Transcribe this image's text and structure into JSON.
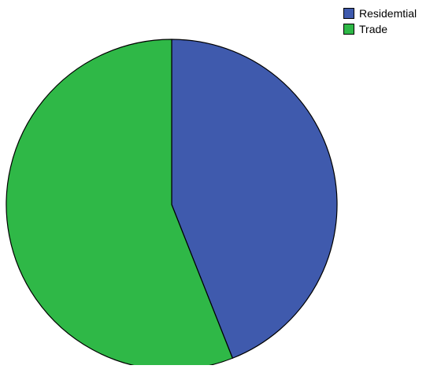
{
  "chart_data": {
    "type": "pie",
    "title": "",
    "categories": [
      "Residemtial",
      "Trade"
    ],
    "values": [
      44,
      56
    ],
    "colors": [
      "#3f5aad",
      "#2fb847"
    ],
    "start_angle_deg": 0,
    "direction": "clockwise",
    "legend_position": "top-right",
    "slice_border_color": "#000000"
  },
  "legend": {
    "items": [
      {
        "label": "Residemtial",
        "color": "#3f5aad"
      },
      {
        "label": "Trade",
        "color": "#2fb847"
      }
    ]
  }
}
